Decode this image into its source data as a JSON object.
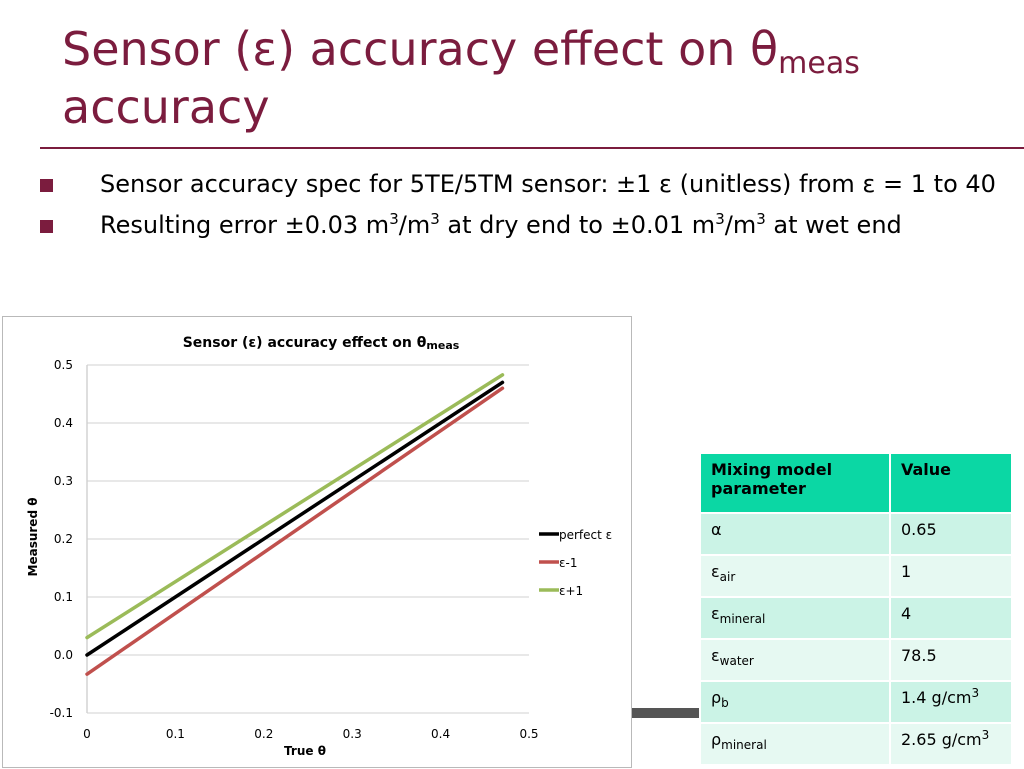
{
  "slide": {
    "title": {
      "main": "Sensor (ε) accuracy effect on θ",
      "sub": "meas",
      "line2": "accuracy"
    },
    "bullets": [
      {
        "text": "Sensor accuracy spec for 5TE/5TM sensor: ±1 ε (unitless) from ε = 1 to 40"
      },
      {
        "p1": "Resulting error ±0.03 m",
        "s1": "3",
        "p2": "/m",
        "s2": "3",
        "p3": " at dry end to ±0.01 m",
        "s3": "3",
        "p4": "/m",
        "s4": "3",
        "p5": " at wet end"
      }
    ],
    "colors": {
      "accent": "#7b1c3e",
      "table_header": "#0bd7a4",
      "row_odd": "#cbf3e6",
      "row_even": "#e6f9f2"
    }
  },
  "table": {
    "headers": [
      "Mixing model parameter",
      "Value"
    ],
    "rows": [
      {
        "sym": "α",
        "sub": "",
        "val": "0.65",
        "vsup": ""
      },
      {
        "sym": "ε",
        "sub": "air",
        "val": "1",
        "vsup": ""
      },
      {
        "sym": "ε",
        "sub": "mineral",
        "val": "4",
        "vsup": ""
      },
      {
        "sym": "ε",
        "sub": "water",
        "val": "78.5",
        "vsup": ""
      },
      {
        "sym": "ρ",
        "sub": "b",
        "val": "1.4 g/cm",
        "vsup": "3"
      },
      {
        "sym": "ρ",
        "sub": "mineral",
        "val": "2.65 g/cm",
        "vsup": "3"
      }
    ]
  },
  "chart_data": {
    "type": "line",
    "title": "Sensor (ε) accuracy effect on  θ",
    "title_sub": "meas",
    "xlabel": "True θ",
    "ylabel": "Measured θ",
    "xlim": [
      0,
      0.5
    ],
    "ylim": [
      -0.1,
      0.5
    ],
    "xticks": [
      "0",
      "0.1",
      "0.2",
      "0.3",
      "0.4",
      "0.5"
    ],
    "yticks": [
      "-0.1",
      "0.0",
      "0.1",
      "0.2",
      "0.3",
      "0.4",
      "0.5"
    ],
    "grid": "horizontal",
    "legend": "right",
    "series": [
      {
        "name": "perfect ε",
        "color": "#000000",
        "x": [
          0,
          0.47
        ],
        "y": [
          0.0,
          0.47
        ]
      },
      {
        "name": "ε-1",
        "color": "#c0504d",
        "x": [
          0,
          0.47
        ],
        "y": [
          -0.033,
          0.46
        ]
      },
      {
        "name": "ε+1",
        "color": "#9bbb59",
        "x": [
          0,
          0.47
        ],
        "y": [
          0.03,
          0.483
        ]
      }
    ]
  }
}
